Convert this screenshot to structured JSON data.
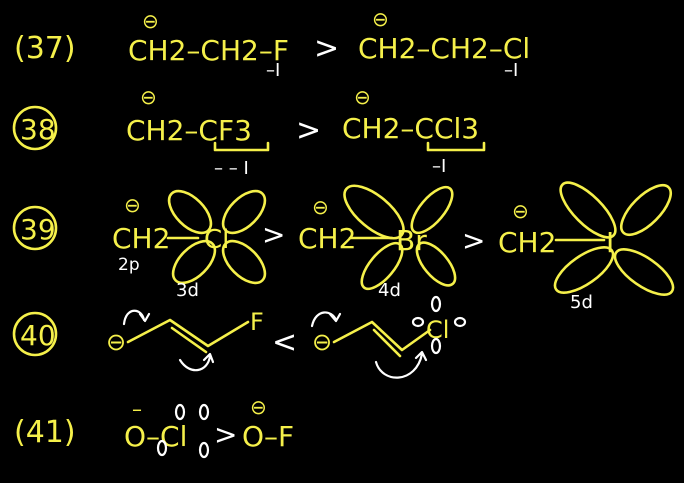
{
  "colors": {
    "background": "#000000",
    "ink_yellow": "#f5f04a",
    "ink_white": "#ffffff"
  },
  "rows": [
    {
      "number": "(37)",
      "left": {
        "charge": "⊖",
        "formula": "CH2–CH2–F",
        "effect": "–I"
      },
      "relation": ">",
      "right": {
        "charge": "⊖",
        "formula": "CH2–CH2–Cl",
        "effect": "–I"
      }
    },
    {
      "number": "38",
      "left": {
        "charge": "⊖",
        "formula": "CH2–CF3",
        "effect": "– – I"
      },
      "relation": ">",
      "right": {
        "charge": "⊖",
        "formula": "CH2–CCl3",
        "effect": "–I"
      }
    },
    {
      "number": "39",
      "items": [
        {
          "charge": "⊖",
          "group": "CH2",
          "atom": "Cl",
          "orbital_label": "3d",
          "carbon_orbital_label": "2p"
        },
        {
          "charge": "⊖",
          "group": "CH2",
          "atom": "Br",
          "orbital_label": "4d"
        },
        {
          "charge": "⊖",
          "group": "CH2",
          "atom": "I",
          "orbital_label": "5d"
        }
      ],
      "relations": [
        ">",
        ">"
      ]
    },
    {
      "number": "40",
      "left": {
        "charge": "⊖",
        "atom": "F"
      },
      "relation": "<",
      "right": {
        "charge": "⊖",
        "atom": "Cl"
      }
    },
    {
      "number": "(41)",
      "left": {
        "charge": "–",
        "formula": "O–Cl"
      },
      "relation": ">",
      "right": {
        "charge": "⊖",
        "formula": "O–F"
      }
    }
  ]
}
